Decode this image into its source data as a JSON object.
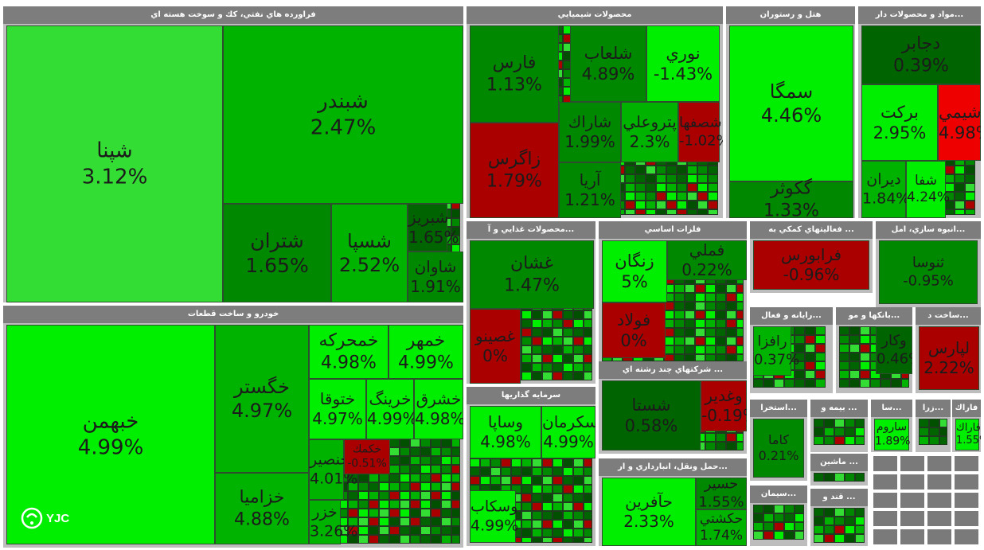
{
  "palette": {
    "bright": "#00ee00",
    "light": "#33dd33",
    "mid": "#00b300",
    "dark": "#008800",
    "darker": "#006400",
    "red": "#aa0000",
    "brightred": "#ee0000",
    "header": "#7d7d7d"
  },
  "logo": {
    "text": "YJC",
    "icon": "yjc-logo-icon"
  },
  "chart_data": {
    "type": "treemap",
    "sectors": [
      {
        "name": "فراورده هاي نفتي، كك و سوخت هسته اي",
        "tiles": [
          {
            "symbol": "شپنا",
            "change": "3.12%"
          },
          {
            "symbol": "شبندر",
            "change": "2.47%"
          },
          {
            "symbol": "شتران",
            "change": "1.65%"
          },
          {
            "symbol": "شسپا",
            "change": "2.52%"
          },
          {
            "symbol": "شبريز",
            "change": "1.65%"
          },
          {
            "symbol": "شاوان",
            "change": "1.91%"
          }
        ]
      },
      {
        "name": "خودرو و ساخت قطعات",
        "tiles": [
          {
            "symbol": "خبهمن",
            "change": "4.99%"
          },
          {
            "symbol": "خگستر",
            "change": "4.97%"
          },
          {
            "symbol": "خزاميا",
            "change": "4.88%"
          },
          {
            "symbol": "خمحركه",
            "change": "4.98%"
          },
          {
            "symbol": "خمهر",
            "change": "4.99%"
          },
          {
            "symbol": "ختوقا",
            "change": "4.97%"
          },
          {
            "symbol": "خرينگ",
            "change": "4.99%"
          },
          {
            "symbol": "خشرق",
            "change": "4.98%"
          },
          {
            "symbol": "خنصير",
            "change": "4.01%"
          },
          {
            "symbol": "خزر",
            "change": "3.26%"
          },
          {
            "symbol": "خكمك",
            "change": "-0.51%"
          }
        ]
      },
      {
        "name": "محصولات شيميايي",
        "tiles": [
          {
            "symbol": "فارس",
            "change": "1.13%"
          },
          {
            "symbol": "زاگرس",
            "change": "1.79%"
          },
          {
            "symbol": "شلعاب",
            "change": "4.89%"
          },
          {
            "symbol": "نوري",
            "change": "-1.43%"
          },
          {
            "symbol": "شاراك",
            "change": "1.99%"
          },
          {
            "symbol": "آريا",
            "change": "1.21%"
          },
          {
            "symbol": "پتروعلي",
            "change": "2.3%"
          },
          {
            "symbol": "شصفها",
            "change": "-1.02%"
          }
        ]
      },
      {
        "name": "هتل و رستوران",
        "tiles": [
          {
            "symbol": "سمگا",
            "change": "4.46%"
          },
          {
            "symbol": "گكوثر",
            "change": "1.33%"
          }
        ]
      },
      {
        "name": "مواد و محصولات دار...",
        "tiles": [
          {
            "symbol": "دجابر",
            "change": "0.39%"
          },
          {
            "symbol": "بركت",
            "change": "2.95%"
          },
          {
            "symbol": "شيمي",
            "change": "4.98%"
          },
          {
            "symbol": "ديران",
            "change": "1.84%"
          },
          {
            "symbol": "شفا",
            "change": "4.24%"
          }
        ]
      },
      {
        "name": "محصولات غذايي و آ...",
        "tiles": [
          {
            "symbol": "غشان",
            "change": "1.47%"
          },
          {
            "symbol": "غصينو",
            "change": "0%"
          }
        ]
      },
      {
        "name": "فلزات اساسي",
        "tiles": [
          {
            "symbol": "زنگان",
            "change": "5%"
          },
          {
            "symbol": "فملي",
            "change": "0.22%"
          },
          {
            "symbol": "فولاد",
            "change": "0%"
          }
        ]
      },
      {
        "name": "فعاليتهاي كمكي به ...",
        "tiles": [
          {
            "symbol": "فرابورس",
            "change": "-0.96%"
          }
        ]
      },
      {
        "name": "انبوه سازي، امل...",
        "tiles": [
          {
            "symbol": "ثنوسا",
            "change": "-0.95%"
          }
        ]
      },
      {
        "name": "شركتهاي چند رشته اي ...",
        "tiles": [
          {
            "symbol": "شستا",
            "change": "0.58%"
          },
          {
            "symbol": "وغدير",
            "change": "-0.19%"
          }
        ]
      },
      {
        "name": "سرمايه گذاريها",
        "tiles": [
          {
            "symbol": "وساپا",
            "change": "4.98%"
          },
          {
            "symbol": "وسكرمان",
            "change": "4.99%"
          },
          {
            "symbol": "وسكاب",
            "change": "4.99%"
          }
        ]
      },
      {
        "name": "حمل ونقل، انبارداري و ار...",
        "tiles": [
          {
            "symbol": "حآفرين",
            "change": "2.33%"
          },
          {
            "symbol": "حسير",
            "change": "1.55%"
          },
          {
            "symbol": "حكشتي",
            "change": "1.74%"
          }
        ]
      },
      {
        "name": "رايانه و فعال...",
        "tiles": [
          {
            "symbol": "رافزا",
            "change": "0.37%"
          }
        ]
      },
      {
        "name": "بانكها و مو...",
        "tiles": [
          {
            "symbol": "وكار",
            "change": "0.46%"
          }
        ]
      },
      {
        "name": "ساخت د...",
        "tiles": [
          {
            "symbol": "لپارس",
            "change": "2.22%"
          }
        ]
      },
      {
        "name": "استخرا...",
        "tiles": [
          {
            "symbol": "كاما",
            "change": "0.21%"
          }
        ]
      },
      {
        "name": "بيمه و ...",
        "tiles": []
      },
      {
        "name": "سا...",
        "tiles": [
          {
            "symbol": "ساروم",
            "change": "1.89%"
          }
        ]
      },
      {
        "name": "زرا...",
        "tiles": []
      },
      {
        "name": "فاراك",
        "tiles": [
          {
            "symbol": "فاراك",
            "change": "1.55%"
          }
        ]
      },
      {
        "name": "ماشين ...",
        "tiles": []
      },
      {
        "name": "سيمان...",
        "tiles": []
      },
      {
        "name": "قند و ...",
        "tiles": []
      }
    ]
  }
}
